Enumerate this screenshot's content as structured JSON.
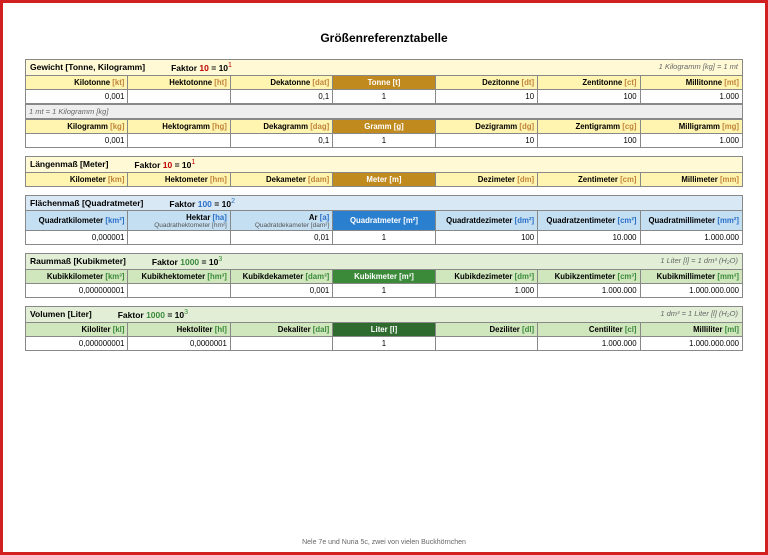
{
  "title": "Größenreferenztabelle",
  "footer": "Nele 7e und Nuria 5c, zwei von vielen Buckhörnchen",
  "sections": [
    {
      "title": "Gewicht [Tonne, Kilogramm]",
      "factor_label": "Faktor",
      "factor_num": "10",
      "factor_exp": "1",
      "factor_color": "#c00000",
      "side_note": "1 Kilogramm [kg] = 1 mt",
      "title_bg": "#fff9d6",
      "header_bg": "#fff4b0",
      "hl_bg": "#c08a1e",
      "abbr_color": "#c0843a",
      "rows": [
        {
          "headers": [
            {
              "n": "Kilotonne",
              "a": "[kt]"
            },
            {
              "n": "Hektotonne",
              "a": "[ht]"
            },
            {
              "n": "Dekatonne",
              "a": "[dat]"
            },
            {
              "n": "Tonne",
              "a": "[t]",
              "hl": true
            },
            {
              "n": "Dezitonne",
              "a": "[dt]"
            },
            {
              "n": "Zentitonne",
              "a": "[ct]"
            },
            {
              "n": "Millitonne",
              "a": "[mt]"
            }
          ],
          "values": [
            "0,001",
            "",
            "0,1",
            "1",
            "10",
            "100",
            "1.000"
          ]
        },
        {
          "note": "1 mt = 1 Kilogramm [kg]",
          "headers": [
            {
              "n": "Kilogramm",
              "a": "[kg]"
            },
            {
              "n": "Hektogramm",
              "a": "[hg]"
            },
            {
              "n": "Dekagramm",
              "a": "[dag]"
            },
            {
              "n": "Gramm",
              "a": "[g]",
              "hl": true
            },
            {
              "n": "Dezigramm",
              "a": "[dg]"
            },
            {
              "n": "Zentigramm",
              "a": "[cg]"
            },
            {
              "n": "Milligramm",
              "a": "[mg]"
            }
          ],
          "values": [
            "0,001",
            "",
            "0,1",
            "1",
            "10",
            "100",
            "1.000"
          ]
        }
      ]
    },
    {
      "title": "Längenmaß [Meter]",
      "factor_label": "Faktor",
      "factor_num": "10",
      "factor_exp": "1",
      "factor_color": "#c00000",
      "side_note": "",
      "title_bg": "#fff9d6",
      "header_bg": "#fff4b0",
      "hl_bg": "#c08a1e",
      "abbr_color": "#c0843a",
      "rows": [
        {
          "headers": [
            {
              "n": "Kilometer",
              "a": "[km]"
            },
            {
              "n": "Hektometer",
              "a": "[hm]"
            },
            {
              "n": "Dekameter",
              "a": "[dam]"
            },
            {
              "n": "Meter",
              "a": "[m]",
              "hl": true
            },
            {
              "n": "Dezimeter",
              "a": "[dm]"
            },
            {
              "n": "Zentimeter",
              "a": "[cm]"
            },
            {
              "n": "Millimeter",
              "a": "[mm]"
            }
          ],
          "values": null
        }
      ]
    },
    {
      "title": "Flächenmaß [Quadratmeter]",
      "factor_label": "Faktor",
      "factor_num": "100",
      "factor_exp": "2",
      "factor_color": "#2a6fc9",
      "side_note": "",
      "title_bg": "#d9e8f5",
      "header_bg": "#c5dff2",
      "hl_bg": "#2a7fcf",
      "abbr_color": "#2a6fc9",
      "rows": [
        {
          "headers": [
            {
              "n": "Quadratkilometer",
              "a": "[km²]"
            },
            {
              "n": "Hektar",
              "a": "[ha]",
              "sub": "Quadrathektometer [hm²]"
            },
            {
              "n": "Ar",
              "a": "[a]",
              "sub": "Quadratdekameter [dam²]"
            },
            {
              "n": "Quadratmeter",
              "a": "[m²]",
              "hl": true
            },
            {
              "n": "Quadratdezimeter",
              "a": "[dm²]"
            },
            {
              "n": "Quadratzentimeter",
              "a": "[cm²]"
            },
            {
              "n": "Quadratmillimeter",
              "a": "[mm²]"
            }
          ],
          "values": [
            "0,000001",
            "",
            "0,01",
            "1",
            "100",
            "10.000",
            "1.000.000"
          ]
        }
      ]
    },
    {
      "title": "Raummaß [Kubikmeter]",
      "factor_label": "Faktor",
      "factor_num": "1000",
      "factor_exp": "3",
      "factor_color": "#3a8a3a",
      "side_note": "1 Liter [l] = 1 dm³ (H₂O)",
      "title_bg": "#e2efd6",
      "header_bg": "#d0e6bd",
      "hl_bg": "#3a8a3a",
      "abbr_color": "#3a8a3a",
      "rows": [
        {
          "headers": [
            {
              "n": "Kubikkilometer",
              "a": "[km³]"
            },
            {
              "n": "Kubikhektometer",
              "a": "[hm³]"
            },
            {
              "n": "Kubikdekameter",
              "a": "[dam³]"
            },
            {
              "n": "Kubikmeter",
              "a": "[m³]",
              "hl": true
            },
            {
              "n": "Kubikdezimeter",
              "a": "[dm³]"
            },
            {
              "n": "Kubikzentimeter",
              "a": "[cm³]"
            },
            {
              "n": "Kubikmillimeter",
              "a": "[mm³]"
            }
          ],
          "values": [
            "0,000000001",
            "",
            "0,001",
            "1",
            "1.000",
            "1.000.000",
            "1.000.000.000"
          ]
        }
      ]
    },
    {
      "title": "Volumen [Liter]",
      "factor_label": "Faktor",
      "factor_num": "1000",
      "factor_exp": "3",
      "factor_color": "#3a8a3a",
      "side_note": "1 dm³ = 1 Liter [l] (H₂O)",
      "title_bg": "#e2efd6",
      "header_bg": "#d0e6bd",
      "hl_bg": "#2f6b2f",
      "abbr_color": "#3a8a3a",
      "rows": [
        {
          "headers": [
            {
              "n": "Kiloliter",
              "a": "[kl]"
            },
            {
              "n": "Hektoliter",
              "a": "[hl]"
            },
            {
              "n": "Dekaliter",
              "a": "[dal]"
            },
            {
              "n": "Liter",
              "a": "[l]",
              "hl": true
            },
            {
              "n": "Deziliter",
              "a": "[dl]"
            },
            {
              "n": "Centiliter",
              "a": "[cl]"
            },
            {
              "n": "Milliliter",
              "a": "[ml]"
            }
          ],
          "values": [
            "0,000000001",
            "0,0000001",
            "",
            "1",
            "",
            "1.000.000",
            "1.000.000.000"
          ]
        }
      ]
    }
  ]
}
